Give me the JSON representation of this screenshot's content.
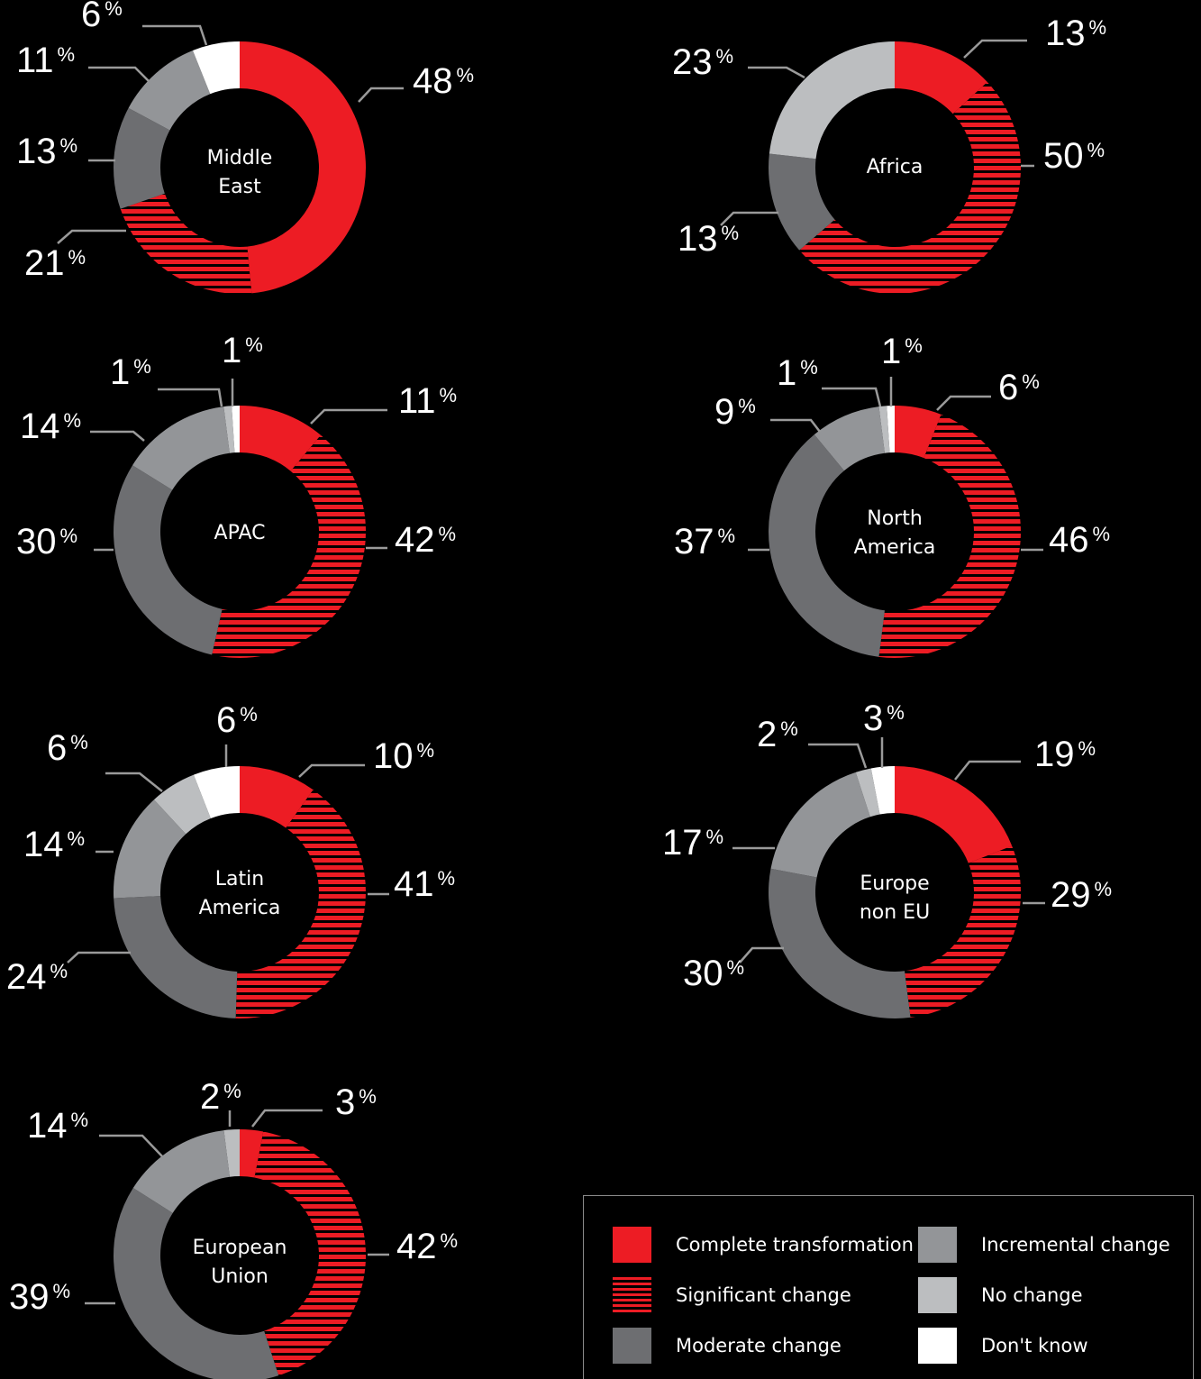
{
  "colors": {
    "complete": "#ed1c24",
    "significant": "#ed1c24",
    "moderate": "#6d6e71",
    "incremental": "#939598",
    "nochange": "#bcbec0",
    "dontknow": "#ffffff",
    "leader": "#9a9a9a",
    "background": "#000000"
  },
  "chart_data": [
    {
      "type": "pie",
      "title": "Middle East",
      "title_lines": [
        "Middle",
        "East"
      ],
      "categories": [
        "Complete transformation",
        "Significant change",
        "Moderate change",
        "Incremental change",
        "No change",
        "Don't know"
      ],
      "values": [
        48,
        21,
        13,
        11,
        0,
        6
      ],
      "labels": {
        "values": [
          "48",
          "21",
          "13",
          "11",
          "6"
        ],
        "unit": "%"
      }
    },
    {
      "type": "pie",
      "title": "Africa",
      "title_lines": [
        "Africa"
      ],
      "categories": [
        "Complete transformation",
        "Significant change",
        "Moderate change",
        "Incremental change",
        "No change",
        "Don't know"
      ],
      "values": [
        13,
        50,
        13,
        0,
        23,
        0
      ],
      "labels": {
        "values": [
          "13",
          "50",
          "13",
          "23"
        ],
        "unit": "%"
      }
    },
    {
      "type": "pie",
      "title": "APAC",
      "title_lines": [
        "APAC"
      ],
      "categories": [
        "Complete transformation",
        "Significant change",
        "Moderate change",
        "Incremental change",
        "No change",
        "Don't know"
      ],
      "values": [
        11,
        42,
        30,
        14,
        1,
        1
      ],
      "labels": {
        "values": [
          "11",
          "42",
          "30",
          "14",
          "1",
          "1"
        ],
        "unit": "%"
      }
    },
    {
      "type": "pie",
      "title": "North America",
      "title_lines": [
        "North",
        "America"
      ],
      "categories": [
        "Complete transformation",
        "Significant change",
        "Moderate change",
        "Incremental change",
        "No change",
        "Don't know"
      ],
      "values": [
        6,
        46,
        37,
        9,
        1,
        1
      ],
      "labels": {
        "values": [
          "6",
          "46",
          "37",
          "9",
          "1",
          "1"
        ],
        "unit": "%"
      }
    },
    {
      "type": "pie",
      "title": "Latin America",
      "title_lines": [
        "Latin",
        "America"
      ],
      "categories": [
        "Complete transformation",
        "Significant change",
        "Moderate change",
        "Incremental change",
        "No change",
        "Don't know"
      ],
      "values": [
        10,
        41,
        24,
        14,
        6,
        6
      ],
      "labels": {
        "values": [
          "10",
          "41",
          "24",
          "14",
          "6",
          "6"
        ],
        "unit": "%"
      }
    },
    {
      "type": "pie",
      "title": "Europe non EU",
      "title_lines": [
        "Europe",
        "non EU"
      ],
      "categories": [
        "Complete transformation",
        "Significant change",
        "Moderate change",
        "Incremental change",
        "No change",
        "Don't know"
      ],
      "values": [
        19,
        29,
        30,
        17,
        2,
        3
      ],
      "labels": {
        "values": [
          "19",
          "29",
          "30",
          "17",
          "2",
          "3"
        ],
        "unit": "%"
      }
    },
    {
      "type": "pie",
      "title": "European Union",
      "title_lines": [
        "European",
        "Union"
      ],
      "categories": [
        "Complete transformation",
        "Significant change",
        "Moderate change",
        "Incremental change",
        "No change",
        "Don't know"
      ],
      "values": [
        3,
        42,
        39,
        14,
        2,
        0
      ],
      "labels": {
        "values": [
          "3",
          "42",
          "39",
          "14",
          "2"
        ],
        "unit": "%"
      }
    }
  ],
  "legend": {
    "items": [
      {
        "label": "Complete transformation",
        "key": "complete"
      },
      {
        "label": "Significant change",
        "key": "significant"
      },
      {
        "label": "Moderate change",
        "key": "moderate"
      },
      {
        "label": "Incremental change",
        "key": "incremental"
      },
      {
        "label": "No change",
        "key": "nochange"
      },
      {
        "label": "Don't know",
        "key": "dontknow"
      }
    ]
  }
}
